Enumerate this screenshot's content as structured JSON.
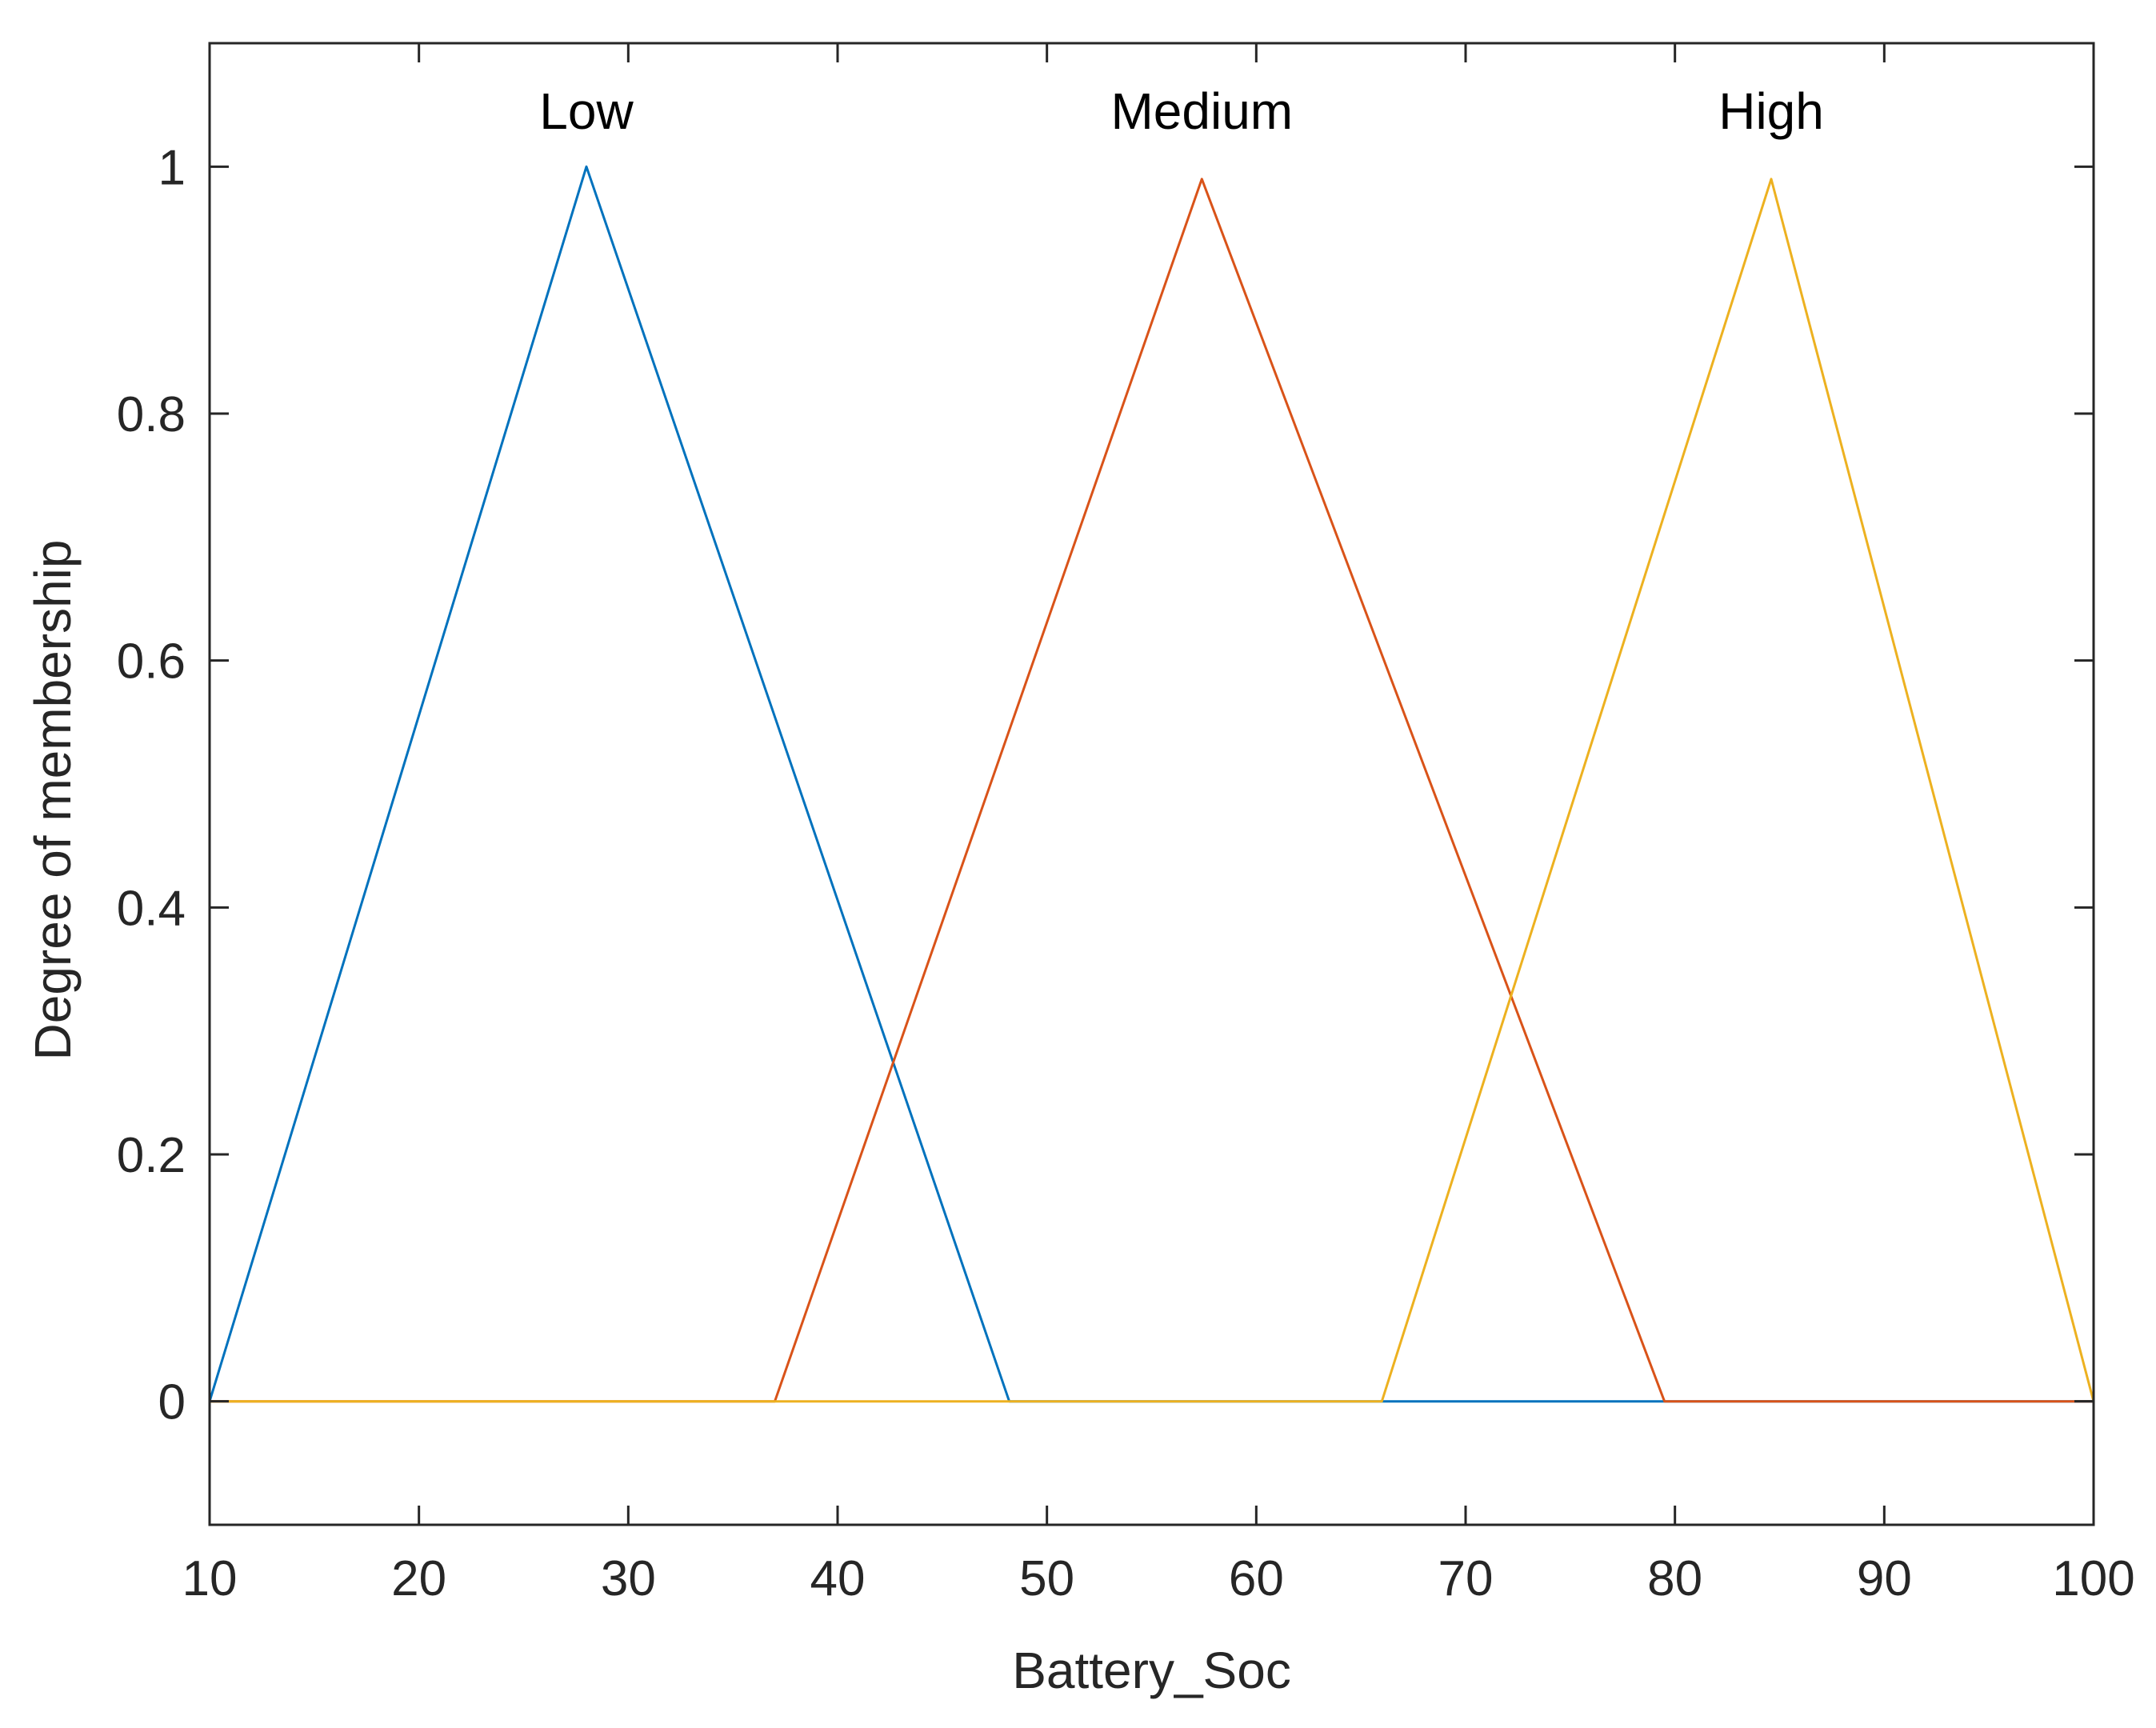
{
  "chart_data": {
    "type": "line",
    "title": "",
    "xlabel": "Battery_Soc",
    "ylabel": "Degree of membership",
    "xlim": [
      10,
      100
    ],
    "ylim": [
      -0.1,
      1.1
    ],
    "xticks": [
      10,
      20,
      30,
      40,
      50,
      60,
      70,
      80,
      90,
      100
    ],
    "yticks": [
      0,
      0.2,
      0.4,
      0.6,
      0.8,
      1
    ],
    "ytick_labels": [
      "0",
      "0.2",
      "0.4",
      "0.6",
      "0.8",
      "1"
    ],
    "grid": false,
    "series": [
      {
        "name": "Low",
        "color": "#0072BD",
        "x": [
          10,
          28,
          48.2,
          100
        ],
        "y": [
          0,
          1,
          0,
          0
        ],
        "label_x": 28,
        "label_y": 1.045
      },
      {
        "name": "Medium",
        "color": "#D95319",
        "x": [
          10,
          37,
          57.4,
          79.5,
          100
        ],
        "y": [
          0,
          0,
          0.99,
          0,
          0
        ],
        "label_x": 57.4,
        "label_y": 1.045
      },
      {
        "name": "High",
        "color": "#EDB120",
        "x": [
          10,
          66,
          84.6,
          100
        ],
        "y": [
          0,
          0,
          0.99,
          0
        ],
        "label_x": 84.6,
        "label_y": 1.045
      }
    ]
  }
}
